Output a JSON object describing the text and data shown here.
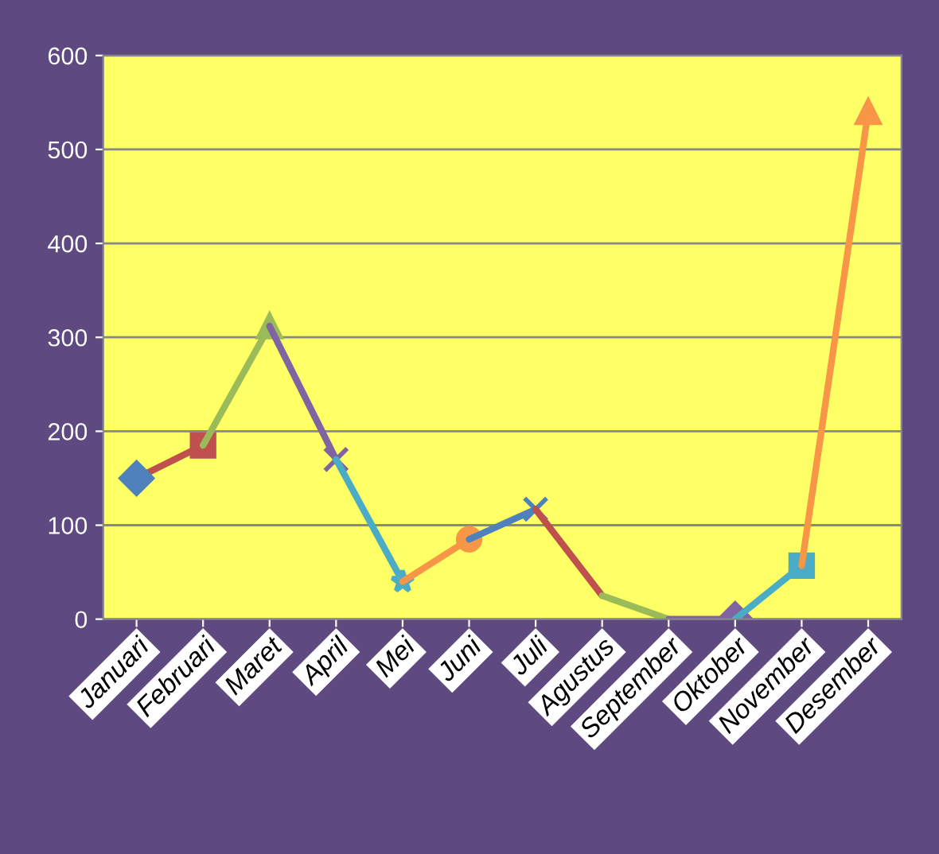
{
  "chart_data": {
    "type": "line",
    "categories": [
      "Januari",
      "Februari",
      "Maret",
      "April",
      "Mei",
      "Juni",
      "Juli",
      "Agustus",
      "September",
      "Oktober",
      "November",
      "Desember"
    ],
    "series": [
      {
        "color": "#c0504d",
        "colors": [
          "#4f81bd",
          "#c0504d",
          null,
          null,
          null,
          null,
          null,
          null,
          null,
          null,
          null,
          null
        ],
        "marker": [
          "diamond",
          "square",
          "none",
          "none",
          "none",
          "none",
          "none",
          "none",
          "none",
          "none",
          "none",
          "none"
        ],
        "values": [
          150,
          185,
          null,
          null,
          null,
          null,
          null,
          null,
          null,
          null,
          null,
          null
        ]
      },
      {
        "color": "#9bbb59",
        "colors": [
          null,
          null,
          "#9bbb59",
          null,
          null,
          null,
          null,
          null,
          null,
          null,
          null,
          null
        ],
        "marker": [
          "none",
          "none",
          "triangle",
          "none",
          "none",
          "none",
          "none",
          "none",
          "none",
          "none",
          "none",
          "none"
        ],
        "values": [
          null,
          185,
          312,
          null,
          null,
          null,
          null,
          null,
          null,
          null,
          null,
          null
        ]
      },
      {
        "color": "#8064a2",
        "colors": [
          null,
          null,
          null,
          "#8064a2",
          null,
          null,
          null,
          null,
          null,
          null,
          null,
          null
        ],
        "marker": [
          "none",
          "none",
          "none",
          "cross",
          "none",
          "none",
          "none",
          "none",
          "none",
          "none",
          "none",
          "none"
        ],
        "values": [
          null,
          null,
          312,
          170,
          null,
          null,
          null,
          null,
          null,
          null,
          null,
          null
        ]
      },
      {
        "color": "#4bacc6",
        "colors": [
          null,
          null,
          null,
          null,
          "#4bacc6",
          null,
          null,
          null,
          null,
          null,
          null,
          null
        ],
        "marker": [
          "none",
          "none",
          "none",
          "none",
          "star",
          "none",
          "none",
          "none",
          "none",
          "none",
          "none",
          "none"
        ],
        "values": [
          null,
          null,
          null,
          170,
          40,
          null,
          null,
          null,
          null,
          null,
          null,
          null
        ]
      },
      {
        "color": "#f79646",
        "colors": [
          null,
          null,
          null,
          null,
          null,
          "#f79646",
          null,
          null,
          null,
          null,
          null,
          null
        ],
        "marker": [
          "none",
          "none",
          "none",
          "none",
          "none",
          "circle",
          "none",
          "none",
          "none",
          "none",
          "none",
          "none"
        ],
        "values": [
          null,
          null,
          null,
          null,
          40,
          85,
          null,
          null,
          null,
          null,
          null,
          null
        ]
      },
      {
        "color": "#4f81bd",
        "colors": [
          null,
          null,
          null,
          null,
          null,
          null,
          "#4f81bd",
          null,
          null,
          null,
          null,
          null
        ],
        "marker": [
          "none",
          "none",
          "none",
          "none",
          "none",
          "none",
          "cross",
          "none",
          "none",
          "none",
          "none",
          "none"
        ],
        "values": [
          null,
          null,
          null,
          null,
          null,
          85,
          117,
          null,
          null,
          null,
          null,
          null
        ]
      },
      {
        "color": "#c0504d",
        "values": [
          null,
          null,
          null,
          null,
          null,
          null,
          117,
          25,
          null,
          null,
          null,
          null
        ]
      },
      {
        "color": "#9bbb59",
        "values": [
          null,
          null,
          null,
          null,
          null,
          null,
          null,
          25,
          0,
          null,
          null,
          null
        ]
      },
      {
        "color": "#8064a2",
        "colors": [
          null,
          null,
          null,
          null,
          null,
          null,
          null,
          null,
          null,
          "#8064a2",
          null,
          null
        ],
        "marker": [
          "none",
          "none",
          "none",
          "none",
          "none",
          "none",
          "none",
          "none",
          "none",
          "diamond",
          "none",
          "none"
        ],
        "values": [
          null,
          null,
          null,
          null,
          null,
          null,
          null,
          null,
          0,
          0,
          null,
          null
        ]
      },
      {
        "color": "#4bacc6",
        "colors": [
          null,
          null,
          null,
          null,
          null,
          null,
          null,
          null,
          null,
          null,
          "#4bacc6",
          null
        ],
        "marker": [
          "none",
          "none",
          "none",
          "none",
          "none",
          "none",
          "none",
          "none",
          "none",
          "none",
          "square",
          "none"
        ],
        "values": [
          null,
          null,
          null,
          null,
          null,
          null,
          null,
          null,
          null,
          0,
          57,
          null
        ]
      },
      {
        "color": "#f79646",
        "colors": [
          null,
          null,
          null,
          null,
          null,
          null,
          null,
          null,
          null,
          null,
          null,
          "#f79646"
        ],
        "marker": [
          "none",
          "none",
          "none",
          "none",
          "none",
          "none",
          "none",
          "none",
          "none",
          "none",
          "none",
          "triangle"
        ],
        "values": [
          null,
          null,
          null,
          null,
          null,
          null,
          null,
          null,
          null,
          null,
          57,
          540
        ]
      }
    ],
    "ylim": [
      0,
      600
    ],
    "yticks": [
      0,
      100,
      200,
      300,
      400,
      500,
      600
    ],
    "grid": "y",
    "legend": false
  }
}
